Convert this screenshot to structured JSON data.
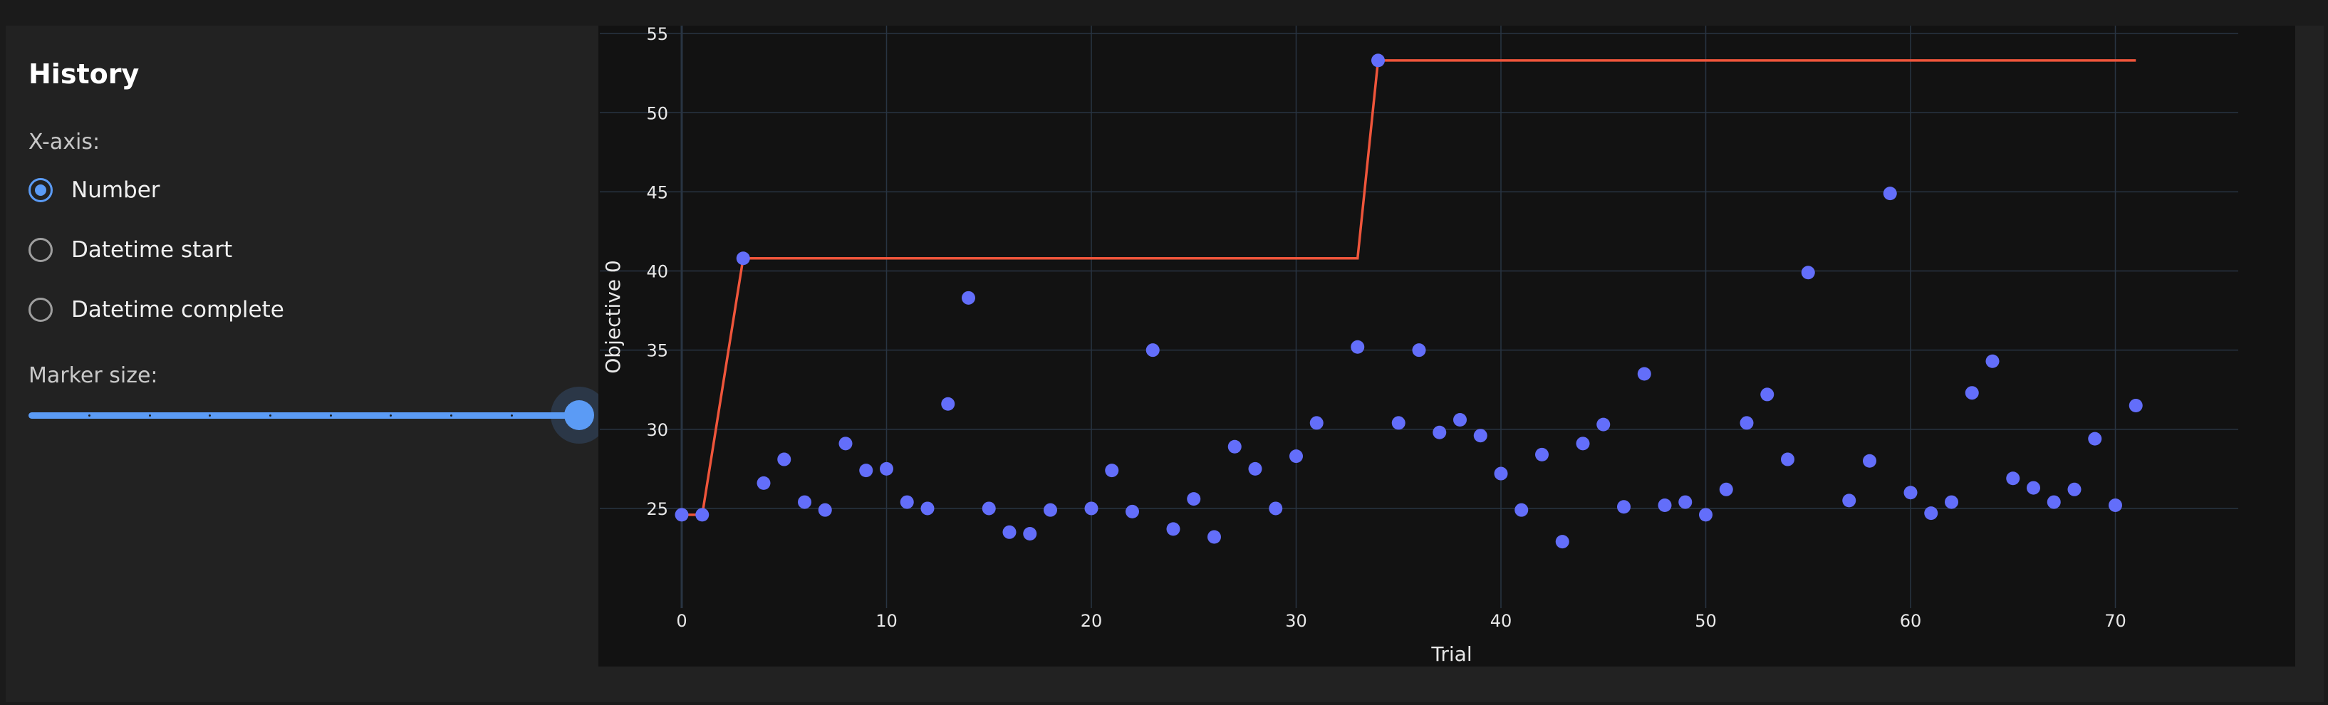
{
  "sidebar": {
    "title": "History",
    "xaxis_label": "X-axis:",
    "xaxis_options": [
      {
        "label": "Number",
        "selected": true
      },
      {
        "label": "Datetime start",
        "selected": false
      },
      {
        "label": "Datetime complete",
        "selected": false
      }
    ],
    "marker_label": "Marker size:",
    "marker_size_fraction": 1.0
  },
  "colors": {
    "accent": "#5b9bf5",
    "points": "#636efa",
    "best_line": "#ef553b",
    "chart_bg": "#121212",
    "grid": "#283442"
  },
  "chart_data": {
    "type": "scatter",
    "xlabel": "Trial",
    "ylabel": "Objective 0",
    "xlim": [
      -4,
      76
    ],
    "ylim": [
      18.7,
      55.5
    ],
    "x_ticks": [
      0,
      10,
      20,
      30,
      40,
      50,
      60,
      70
    ],
    "y_ticks": [
      25,
      30,
      35,
      40,
      45,
      50,
      55
    ],
    "grid": true,
    "series": [
      {
        "type": "scatter",
        "points": [
          [
            0,
            24.6
          ],
          [
            1,
            24.6
          ],
          [
            3,
            40.8
          ],
          [
            4,
            26.6
          ],
          [
            5,
            28.1
          ],
          [
            6,
            25.4
          ],
          [
            7,
            24.9
          ],
          [
            8,
            29.1
          ],
          [
            9,
            27.4
          ],
          [
            10,
            27.5
          ],
          [
            11,
            25.4
          ],
          [
            12,
            25.0
          ],
          [
            13,
            31.6
          ],
          [
            14,
            38.3
          ],
          [
            15,
            25.0
          ],
          [
            16,
            23.5
          ],
          [
            17,
            23.4
          ],
          [
            18,
            24.9
          ],
          [
            20,
            25.0
          ],
          [
            21,
            27.4
          ],
          [
            22,
            24.8
          ],
          [
            23,
            35.0
          ],
          [
            24,
            23.7
          ],
          [
            25,
            25.6
          ],
          [
            26,
            23.2
          ],
          [
            27,
            28.9
          ],
          [
            28,
            27.5
          ],
          [
            29,
            25.0
          ],
          [
            30,
            28.3
          ],
          [
            31,
            30.4
          ],
          [
            33,
            35.2
          ],
          [
            34,
            53.3
          ],
          [
            35,
            30.4
          ],
          [
            36,
            35.0
          ],
          [
            37,
            29.8
          ],
          [
            38,
            30.6
          ],
          [
            39,
            29.6
          ],
          [
            40,
            27.2
          ],
          [
            41,
            24.9
          ],
          [
            42,
            28.4
          ],
          [
            43,
            22.9
          ],
          [
            44,
            29.1
          ],
          [
            45,
            30.3
          ],
          [
            46,
            25.1
          ],
          [
            47,
            33.5
          ],
          [
            48,
            25.2
          ],
          [
            49,
            25.4
          ],
          [
            50,
            24.6
          ],
          [
            51,
            26.2
          ],
          [
            52,
            30.4
          ],
          [
            53,
            32.2
          ],
          [
            54,
            28.1
          ],
          [
            55,
            39.9
          ],
          [
            57,
            25.5
          ],
          [
            58,
            28.0
          ],
          [
            59,
            44.9
          ],
          [
            60,
            26.0
          ],
          [
            61,
            24.7
          ],
          [
            62,
            25.4
          ],
          [
            63,
            32.3
          ],
          [
            64,
            34.3
          ],
          [
            65,
            26.9
          ],
          [
            66,
            26.3
          ],
          [
            67,
            25.4
          ],
          [
            68,
            26.2
          ],
          [
            69,
            29.4
          ],
          [
            70,
            25.2
          ],
          [
            71,
            31.5
          ]
        ]
      },
      {
        "type": "line",
        "points": [
          [
            0,
            24.6
          ],
          [
            1,
            24.6
          ],
          [
            3,
            40.8
          ],
          [
            33,
            40.8
          ],
          [
            34,
            53.3
          ],
          [
            71,
            53.3
          ]
        ]
      }
    ]
  }
}
